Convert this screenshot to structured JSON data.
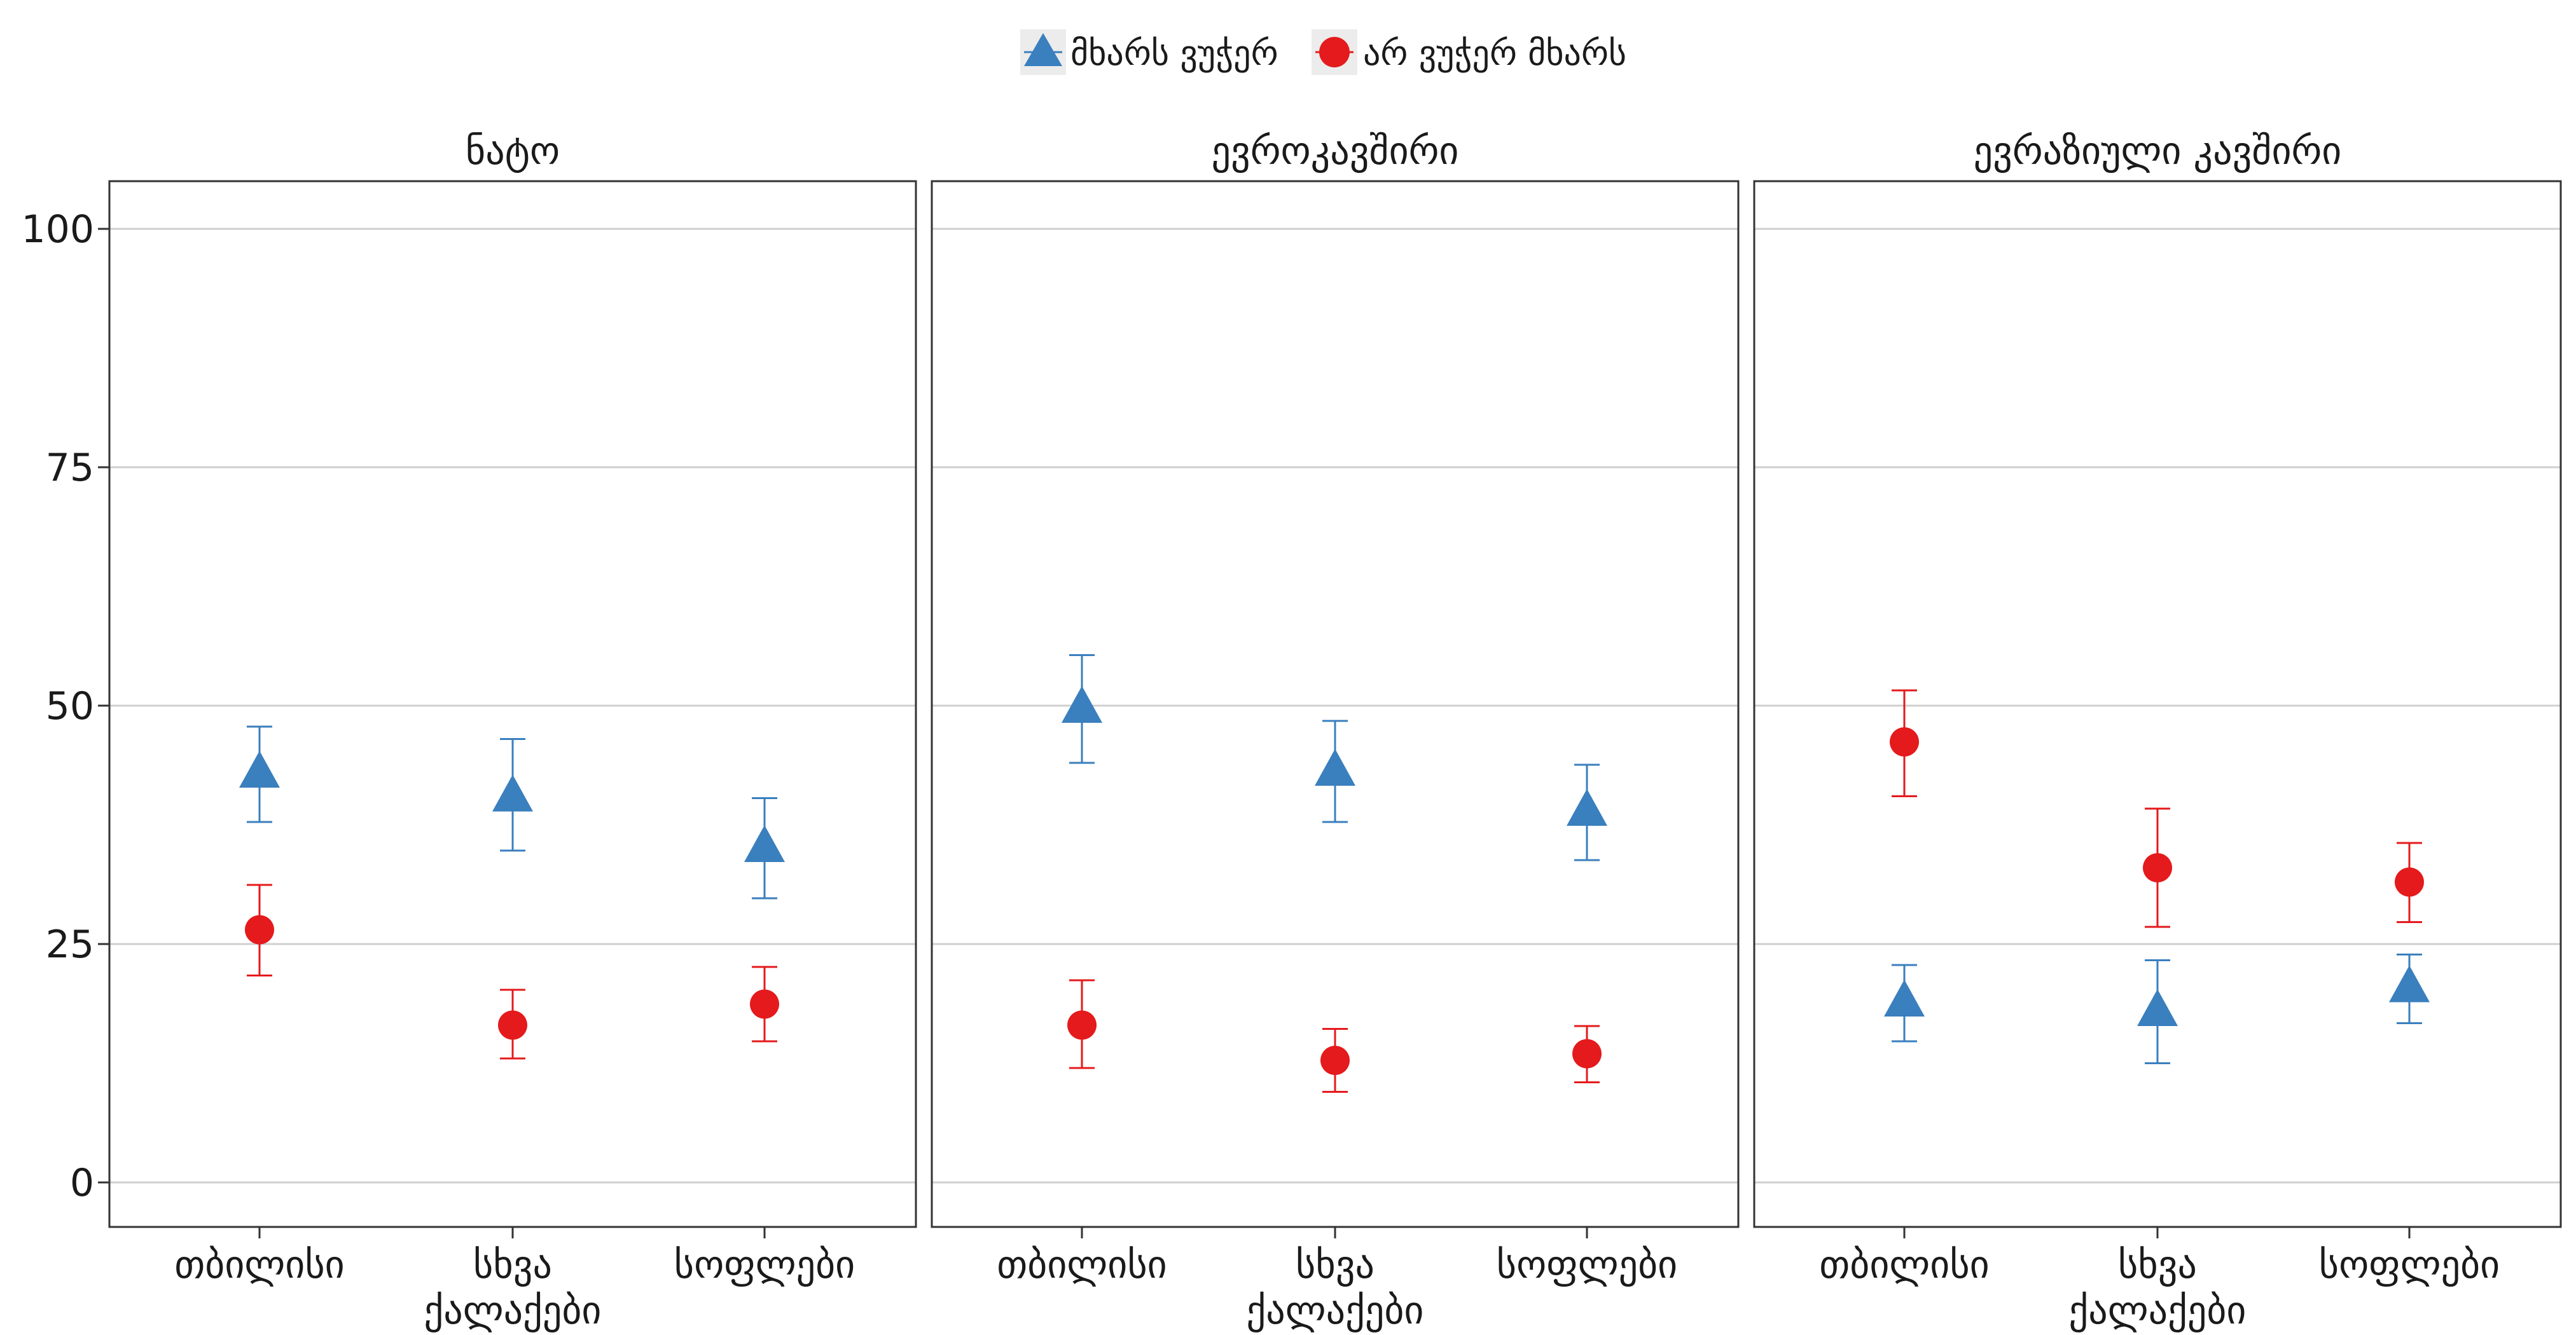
{
  "chart_data": {
    "type": "scatter",
    "legend": {
      "position": "top",
      "entries": [
        {
          "label": "მხარს ვუჭერ",
          "color": "#3A7FBE",
          "shape": "triangle"
        },
        {
          "label": "არ ვუჭერ მხარს",
          "color": "#E41A1C",
          "shape": "circle"
        }
      ]
    },
    "ylim": [
      0,
      100
    ],
    "yticks": [
      "0",
      "25",
      "50",
      "75",
      "100"
    ],
    "ytick_values": [
      0,
      25,
      50,
      75,
      100
    ],
    "grid": true,
    "categories": [
      [
        "თბილისი"
      ],
      [
        "სხვა",
        "ქალაქები"
      ],
      [
        "სოფლები"
      ]
    ],
    "panels": [
      {
        "title": "ნატო",
        "series": [
          {
            "name": "მხარს ვუჭერ",
            "values": [
              43,
              40.5,
              35.2
            ],
            "lower": [
              37.8,
              34.8,
              29.8
            ],
            "upper": [
              47.8,
              46.5,
              40.3
            ]
          },
          {
            "name": "არ ვუჭერ მხარს",
            "values": [
              26.5,
              16.5,
              18.7
            ],
            "lower": [
              21.7,
              13,
              14.8
            ],
            "upper": [
              31.2,
              20.2,
              22.6
            ]
          }
        ]
      },
      {
        "title": "ევროკავშირი",
        "series": [
          {
            "name": "მხარს ვუჭერ",
            "values": [
              49.8,
              43.2,
              39
            ],
            "lower": [
              44,
              37.8,
              33.8
            ],
            "upper": [
              55.3,
              48.4,
              43.8
            ]
          },
          {
            "name": "არ ვუჭერ მხარს",
            "values": [
              16.5,
              12.8,
              13.5
            ],
            "lower": [
              12,
              9.5,
              10.5
            ],
            "upper": [
              21.2,
              16.1,
              16.4
            ]
          }
        ]
      },
      {
        "title": "ევრაზიული კავშირი",
        "series": [
          {
            "name": "მხარს ვუჭერ",
            "values": [
              19,
              18,
              20.5
            ],
            "lower": [
              14.8,
              12.5,
              16.7
            ],
            "upper": [
              22.8,
              23.3,
              23.9
            ]
          },
          {
            "name": "არ ვუჭერ მხარს",
            "values": [
              46.2,
              33,
              31.5
            ],
            "lower": [
              40.5,
              26.8,
              27.3
            ],
            "upper": [
              51.6,
              39.2,
              35.6
            ]
          }
        ]
      }
    ]
  }
}
